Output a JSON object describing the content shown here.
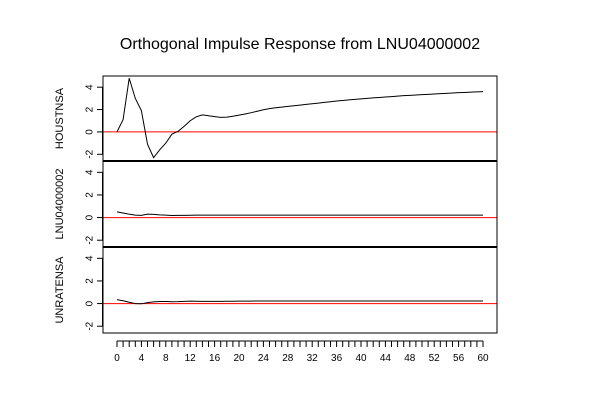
{
  "chart_data": {
    "type": "line",
    "title": "Orthogonal Impulse Response from LNU04000002",
    "x": [
      0,
      1,
      2,
      3,
      4,
      5,
      6,
      7,
      8,
      9,
      10,
      11,
      12,
      13,
      14,
      15,
      16,
      17,
      18,
      19,
      20,
      21,
      22,
      23,
      24,
      25,
      26,
      27,
      28,
      29,
      30,
      31,
      32,
      33,
      34,
      35,
      36,
      37,
      38,
      39,
      40,
      41,
      42,
      43,
      44,
      45,
      46,
      47,
      48,
      49,
      50,
      51,
      52,
      53,
      54,
      55,
      56,
      57,
      58,
      59,
      60
    ],
    "x_ticks": [
      "0",
      "4",
      "8",
      "12",
      "16",
      "20",
      "24",
      "28",
      "32",
      "36",
      "40",
      "44",
      "48",
      "52",
      "56",
      "60"
    ],
    "x_minor_ticks": [
      "0",
      "1",
      "2",
      "3",
      "4",
      "5",
      "6",
      "7",
      "8",
      "9",
      "10",
      "11",
      "12",
      "13",
      "14",
      "15",
      "16",
      "17",
      "18",
      "19",
      "20",
      "21",
      "22",
      "23",
      "24",
      "25",
      "26",
      "27",
      "28",
      "29",
      "30",
      "31",
      "32",
      "33",
      "34",
      "35",
      "36",
      "37",
      "38",
      "39",
      "40",
      "41",
      "42",
      "43",
      "44",
      "45",
      "46",
      "47",
      "48",
      "49",
      "50",
      "51",
      "52",
      "53",
      "54",
      "55",
      "56",
      "57",
      "58",
      "59",
      "60"
    ],
    "xlim": [
      0,
      60
    ],
    "y_ticks": [
      "-2",
      "0",
      "2",
      "4"
    ],
    "ylim": [
      -2.6,
      5.0
    ],
    "zero_line_color": "#ff0000",
    "line_color": "#000000",
    "panels": [
      {
        "ylabel": "HOUSTNSA",
        "values": [
          0.0,
          1.1,
          4.8,
          3.0,
          1.9,
          -1.1,
          -2.3,
          -1.6,
          -1.0,
          -0.2,
          0.05,
          0.5,
          1.0,
          1.35,
          1.52,
          1.45,
          1.37,
          1.3,
          1.32,
          1.4,
          1.5,
          1.6,
          1.72,
          1.85,
          1.98,
          2.08,
          2.16,
          2.22,
          2.28,
          2.34,
          2.4,
          2.46,
          2.52,
          2.58,
          2.64,
          2.7,
          2.76,
          2.81,
          2.86,
          2.91,
          2.96,
          3.0,
          3.04,
          3.08,
          3.12,
          3.16,
          3.2,
          3.24,
          3.27,
          3.3,
          3.33,
          3.36,
          3.39,
          3.42,
          3.45,
          3.48,
          3.51,
          3.53,
          3.56,
          3.58,
          3.6
        ]
      },
      {
        "ylabel": "LNU04000002",
        "values": [
          0.5,
          0.4,
          0.3,
          0.22,
          0.2,
          0.3,
          0.28,
          0.24,
          0.22,
          0.18,
          0.19,
          0.2,
          0.21,
          0.22,
          0.22,
          0.22,
          0.22,
          0.22,
          0.22,
          0.22,
          0.22,
          0.22,
          0.22,
          0.22,
          0.22,
          0.22,
          0.22,
          0.22,
          0.22,
          0.22,
          0.22,
          0.22,
          0.22,
          0.22,
          0.22,
          0.22,
          0.22,
          0.22,
          0.22,
          0.22,
          0.22,
          0.22,
          0.22,
          0.22,
          0.22,
          0.22,
          0.22,
          0.22,
          0.22,
          0.22,
          0.22,
          0.22,
          0.22,
          0.22,
          0.22,
          0.22,
          0.22,
          0.22,
          0.22,
          0.22,
          0.22
        ]
      },
      {
        "ylabel": "UNRATENSA",
        "values": [
          0.35,
          0.25,
          0.12,
          0.0,
          -0.02,
          0.08,
          0.15,
          0.18,
          0.18,
          0.16,
          0.17,
          0.2,
          0.22,
          0.21,
          0.2,
          0.2,
          0.2,
          0.2,
          0.21,
          0.21,
          0.22,
          0.22,
          0.22,
          0.23,
          0.23,
          0.23,
          0.23,
          0.23,
          0.23,
          0.23,
          0.23,
          0.23,
          0.23,
          0.23,
          0.23,
          0.23,
          0.23,
          0.23,
          0.23,
          0.23,
          0.23,
          0.23,
          0.23,
          0.23,
          0.23,
          0.23,
          0.23,
          0.23,
          0.23,
          0.23,
          0.23,
          0.23,
          0.23,
          0.23,
          0.23,
          0.23,
          0.23,
          0.23,
          0.23,
          0.23,
          0.23
        ]
      }
    ]
  }
}
